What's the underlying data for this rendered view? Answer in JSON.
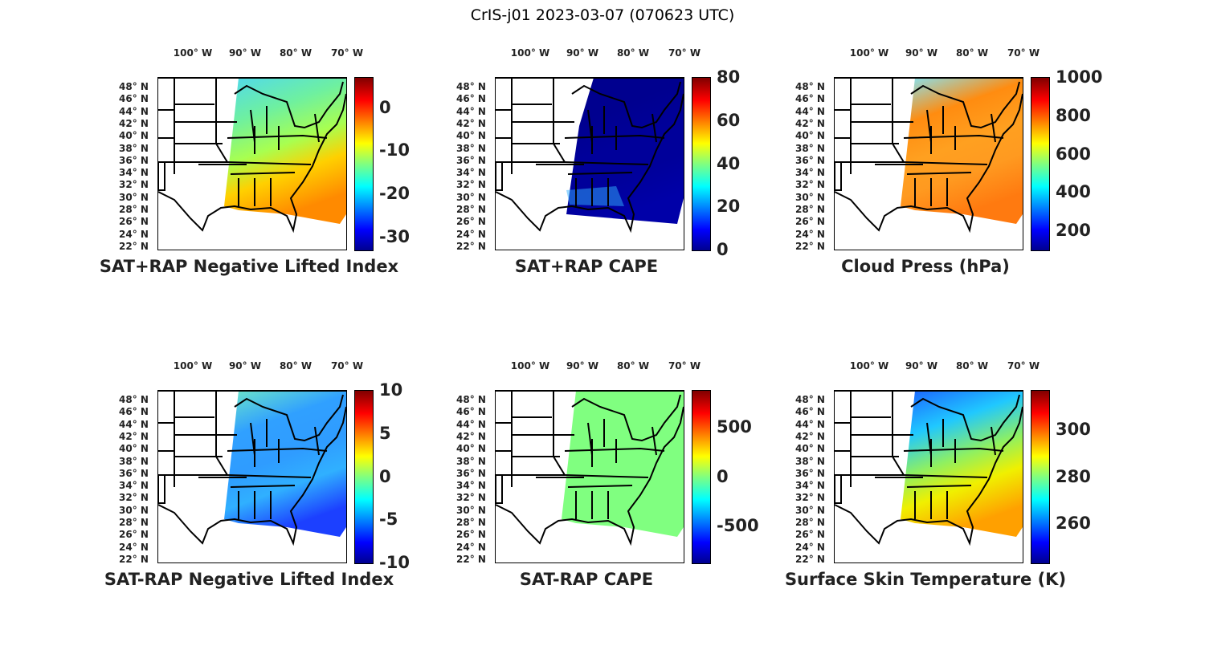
{
  "figure_title": "CrIS-j01 2023-03-07 (070623 UTC)",
  "colormap": "jet",
  "lon_labels": [
    "100° W",
    "90° W",
    "80° W",
    "70° W"
  ],
  "lat_labels": [
    "48° N",
    "46° N",
    "44° N",
    "42° N",
    "40° N",
    "38° N",
    "36° N",
    "34° N",
    "32° N",
    "30° N",
    "28° N",
    "26° N",
    "24° N",
    "22° N"
  ],
  "panels": [
    {
      "title": "SAT+RAP Negative Lifted Index",
      "clim": [
        -33,
        7
      ],
      "ticks": [
        "0",
        "-10",
        "-20",
        "-30"
      ],
      "tick_values": [
        0,
        -10,
        -20,
        -30
      ],
      "swath_colors": [
        "#4fd8f0",
        "#6ef0a0",
        "#a8ff50",
        "#ffd000",
        "#ff8a00"
      ]
    },
    {
      "title": "SAT+RAP CAPE",
      "clim": [
        0,
        80
      ],
      "ticks": [
        "80",
        "60",
        "40",
        "20",
        "0"
      ],
      "tick_values": [
        80,
        60,
        40,
        20,
        0
      ],
      "swath_colors": [
        "#00008f",
        "#00008f",
        "#00009a",
        "#00009a",
        "#0000a8"
      ]
    },
    {
      "title": "Cloud Press (hPa)",
      "clim": [
        100,
        1000
      ],
      "ticks": [
        "1000",
        "800",
        "600",
        "400",
        "200"
      ],
      "tick_values": [
        1000,
        800,
        600,
        400,
        200
      ],
      "swath_colors": [
        "#7fe8ff",
        "#ff8c10",
        "#ffa020",
        "#ff9a20",
        "#ff7a10"
      ]
    },
    {
      "title": "SAT-RAP Negative Lifted Index",
      "clim": [
        -10,
        10
      ],
      "ticks": [
        "10",
        "5",
        "0",
        "-5",
        "-10"
      ],
      "tick_values": [
        10,
        5,
        0,
        -5,
        -10
      ],
      "swath_colors": [
        "#6ee8c8",
        "#30a0ff",
        "#2f9cff",
        "#30b0ff",
        "#1c40ff"
      ]
    },
    {
      "title": "SAT-RAP CAPE",
      "clim": [
        -880,
        880
      ],
      "ticks": [
        "500",
        "0",
        "-500"
      ],
      "tick_values": [
        500,
        0,
        -500
      ],
      "swath_colors": [
        "#80ff80",
        "#80ff80",
        "#80ff80",
        "#80ff80",
        "#80ff80"
      ]
    },
    {
      "title": "Surface Skin Temperature (K)",
      "clim": [
        243,
        317
      ],
      "ticks": [
        "300",
        "280",
        "260"
      ],
      "tick_values": [
        300,
        280,
        260
      ],
      "swath_colors": [
        "#1c60ff",
        "#20c8ff",
        "#90f060",
        "#f0f000",
        "#ffa000"
      ]
    }
  ]
}
